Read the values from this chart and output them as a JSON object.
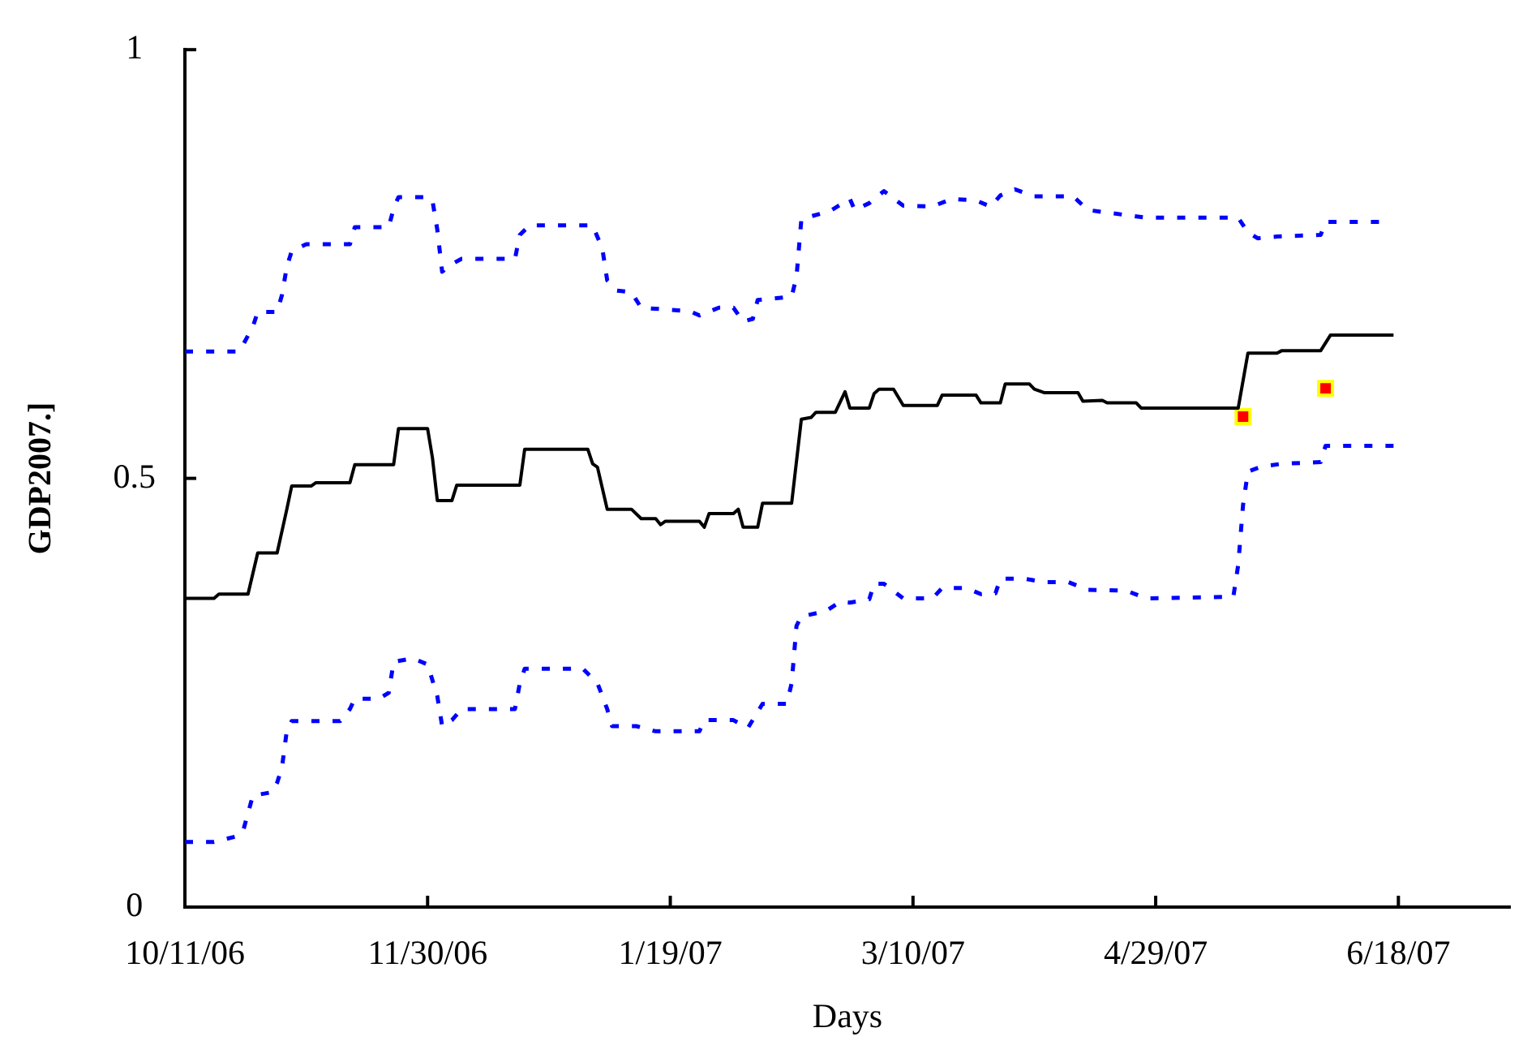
{
  "chart_data": {
    "type": "line",
    "xlabel": "Days",
    "ylabel": "GDP2007.]",
    "xlim": [
      "2006-10-11",
      "2007-07-11"
    ],
    "xticks": [
      {
        "value": "2006-10-11",
        "label": "10/11/06"
      },
      {
        "value": "2006-11-30",
        "label": "11/30/06"
      },
      {
        "value": "2007-01-19",
        "label": "1/19/07"
      },
      {
        "value": "2007-03-10",
        "label": "3/10/07"
      },
      {
        "value": "2007-04-29",
        "label": "4/29/07"
      },
      {
        "value": "2007-06-18",
        "label": "6/18/07"
      }
    ],
    "ylim": [
      0,
      1
    ],
    "yticks": [
      0,
      0.5,
      1
    ],
    "grid": false,
    "legend": false,
    "marker": "none",
    "series": [
      {
        "color": "#0000ff",
        "line_style": "dashed",
        "x": [
          "2006-10-11",
          "2006-10-22",
          "2006-10-23",
          "2006-10-25",
          "2006-10-26",
          "2006-10-30",
          "2006-10-31",
          "2006-11-01",
          "2006-11-02",
          "2006-11-05",
          "2006-11-14",
          "2006-11-15",
          "2006-11-22",
          "2006-11-23",
          "2006-11-24",
          "2006-11-30",
          "2006-12-01",
          "2006-12-02",
          "2006-12-03",
          "2006-12-05",
          "2006-12-07",
          "2006-12-18",
          "2006-12-19",
          "2006-12-21",
          "2007-01-03",
          "2007-01-05",
          "2007-01-06",
          "2007-01-08",
          "2007-01-11",
          "2007-01-13",
          "2007-01-23",
          "2007-01-25",
          "2007-01-29",
          "2007-02-01",
          "2007-02-03",
          "2007-02-05",
          "2007-02-06",
          "2007-02-13",
          "2007-02-14",
          "2007-02-15",
          "2007-02-16",
          "2007-02-21",
          "2007-02-23",
          "2007-02-25",
          "2007-02-26",
          "2007-03-01",
          "2007-03-04",
          "2007-03-08",
          "2007-03-14",
          "2007-03-18",
          "2007-03-23",
          "2007-03-26",
          "2007-03-28",
          "2007-03-31",
          "2007-04-04",
          "2007-04-12",
          "2007-04-15",
          "2007-04-27",
          "2007-05-16",
          "2007-05-18",
          "2007-05-20",
          "2007-05-24",
          "2007-06-02",
          "2007-06-03",
          "2007-06-14"
        ],
        "values": [
          0.648,
          0.648,
          0.656,
          0.677,
          0.694,
          0.694,
          0.714,
          0.747,
          0.765,
          0.773,
          0.773,
          0.793,
          0.793,
          0.815,
          0.828,
          0.828,
          0.824,
          0.79,
          0.741,
          0.75,
          0.756,
          0.756,
          0.784,
          0.795,
          0.795,
          0.768,
          0.731,
          0.719,
          0.717,
          0.699,
          0.695,
          0.69,
          0.699,
          0.699,
          0.683,
          0.686,
          0.708,
          0.712,
          0.735,
          0.802,
          0.804,
          0.812,
          0.819,
          0.826,
          0.813,
          0.821,
          0.835,
          0.818,
          0.817,
          0.826,
          0.824,
          0.817,
          0.83,
          0.837,
          0.829,
          0.829,
          0.813,
          0.804,
          0.804,
          0.787,
          0.78,
          0.782,
          0.784,
          0.799,
          0.799
        ]
      },
      {
        "color": "#000000",
        "line_style": "solid",
        "x": [
          "2006-10-11",
          "2006-10-17",
          "2006-10-18",
          "2006-10-24",
          "2006-10-26",
          "2006-10-30",
          "2006-11-01",
          "2006-11-02",
          "2006-11-06",
          "2006-11-07",
          "2006-11-14",
          "2006-11-15",
          "2006-11-23",
          "2006-11-24",
          "2006-11-30",
          "2006-12-01",
          "2006-12-02",
          "2006-12-05",
          "2006-12-06",
          "2006-12-19",
          "2006-12-20",
          "2007-01-02",
          "2007-01-03",
          "2007-01-04",
          "2007-01-06",
          "2007-01-11",
          "2007-01-13",
          "2007-01-16",
          "2007-01-17",
          "2007-01-18",
          "2007-01-25",
          "2007-01-26",
          "2007-01-27",
          "2007-02-01",
          "2007-02-02",
          "2007-02-03",
          "2007-02-06",
          "2007-02-07",
          "2007-02-13",
          "2007-02-15",
          "2007-02-17",
          "2007-02-18",
          "2007-02-22",
          "2007-02-24",
          "2007-02-25",
          "2007-03-01",
          "2007-03-02",
          "2007-03-03",
          "2007-03-06",
          "2007-03-08",
          "2007-03-15",
          "2007-03-16",
          "2007-03-23",
          "2007-03-24",
          "2007-03-28",
          "2007-03-29",
          "2007-04-03",
          "2007-04-04",
          "2007-04-06",
          "2007-04-13",
          "2007-04-14",
          "2007-04-18",
          "2007-04-19",
          "2007-04-25",
          "2007-04-26",
          "2007-05-16",
          "2007-05-18",
          "2007-05-24",
          "2007-05-25",
          "2007-06-02",
          "2007-06-04",
          "2007-06-17"
        ],
        "values": [
          0.36,
          0.36,
          0.365,
          0.365,
          0.413,
          0.413,
          0.464,
          0.491,
          0.491,
          0.495,
          0.495,
          0.516,
          0.516,
          0.558,
          0.558,
          0.524,
          0.474,
          0.474,
          0.492,
          0.492,
          0.534,
          0.534,
          0.517,
          0.513,
          0.464,
          0.464,
          0.453,
          0.453,
          0.446,
          0.45,
          0.45,
          0.443,
          0.459,
          0.459,
          0.464,
          0.443,
          0.443,
          0.471,
          0.471,
          0.569,
          0.571,
          0.577,
          0.577,
          0.601,
          0.582,
          0.582,
          0.599,
          0.604,
          0.604,
          0.585,
          0.585,
          0.597,
          0.597,
          0.588,
          0.588,
          0.61,
          0.61,
          0.604,
          0.6,
          0.6,
          0.59,
          0.591,
          0.588,
          0.588,
          0.582,
          0.582,
          0.646,
          0.646,
          0.649,
          0.649,
          0.667,
          0.667
        ]
      },
      {
        "color": "#0000ff",
        "line_style": "dashed",
        "x": [
          "2006-10-11",
          "2006-10-17",
          "2006-10-22",
          "2006-10-23",
          "2006-10-25",
          "2006-10-29",
          "2006-10-30",
          "2006-10-31",
          "2006-11-01",
          "2006-11-02",
          "2006-11-12",
          "2006-11-14",
          "2006-11-15",
          "2006-11-20",
          "2006-11-22",
          "2006-11-23",
          "2006-11-27",
          "2006-11-30",
          "2006-12-02",
          "2006-12-03",
          "2006-12-05",
          "2006-12-07",
          "2006-12-18",
          "2006-12-19",
          "2006-12-20",
          "2007-01-01",
          "2007-01-04",
          "2007-01-06",
          "2007-01-07",
          "2007-01-12",
          "2007-01-16",
          "2007-01-25",
          "2007-01-26",
          "2007-02-01",
          "2007-02-04",
          "2007-02-07",
          "2007-02-12",
          "2007-02-13",
          "2007-02-14",
          "2007-02-15",
          "2007-02-20",
          "2007-02-23",
          "2007-02-25",
          "2007-03-01",
          "2007-03-02",
          "2007-03-04",
          "2007-03-08",
          "2007-03-14",
          "2007-03-16",
          "2007-03-21",
          "2007-03-24",
          "2007-03-27",
          "2007-03-28",
          "2007-04-02",
          "2007-04-06",
          "2007-04-11",
          "2007-04-15",
          "2007-04-23",
          "2007-04-27",
          "2007-05-15",
          "2007-05-16",
          "2007-05-17",
          "2007-05-18",
          "2007-05-21",
          "2007-05-25",
          "2007-06-02",
          "2007-06-03",
          "2007-06-17"
        ],
        "values": [
          0.076,
          0.076,
          0.083,
          0.089,
          0.13,
          0.134,
          0.145,
          0.163,
          0.206,
          0.217,
          0.217,
          0.231,
          0.243,
          0.243,
          0.25,
          0.286,
          0.29,
          0.283,
          0.246,
          0.211,
          0.218,
          0.231,
          0.231,
          0.261,
          0.278,
          0.278,
          0.261,
          0.231,
          0.211,
          0.211,
          0.205,
          0.205,
          0.218,
          0.218,
          0.209,
          0.237,
          0.237,
          0.261,
          0.328,
          0.339,
          0.345,
          0.356,
          0.355,
          0.359,
          0.377,
          0.377,
          0.36,
          0.36,
          0.372,
          0.372,
          0.365,
          0.366,
          0.383,
          0.383,
          0.379,
          0.379,
          0.37,
          0.369,
          0.36,
          0.362,
          0.399,
          0.469,
          0.508,
          0.514,
          0.517,
          0.519,
          0.538,
          0.538
        ]
      },
      {
        "type": "scatter",
        "color": "#ff0000",
        "marker": "square",
        "x": [
          "2007-05-17",
          "2007-06-03"
        ],
        "values": [
          0.572,
          0.605
        ]
      }
    ]
  }
}
